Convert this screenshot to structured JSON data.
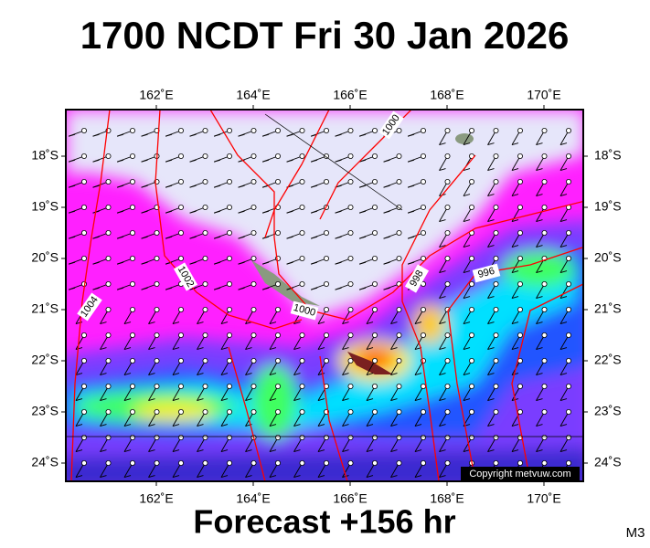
{
  "title": "1700 NCDT Fri 30 Jan 2026",
  "footer": "Forecast +156 hr",
  "model": "M3",
  "copyright": "Copyright metvuw.com",
  "longitude_labels": [
    "162˚E",
    "164˚E",
    "166˚E",
    "168˚E",
    "170˚E"
  ],
  "latitude_labels": [
    "18˚S",
    "19˚S",
    "20˚S",
    "21˚S",
    "22˚S",
    "23˚S",
    "24˚S"
  ],
  "isobar_labels": [
    "1000",
    "1002",
    "1004",
    "1000",
    "998",
    "996"
  ]
}
